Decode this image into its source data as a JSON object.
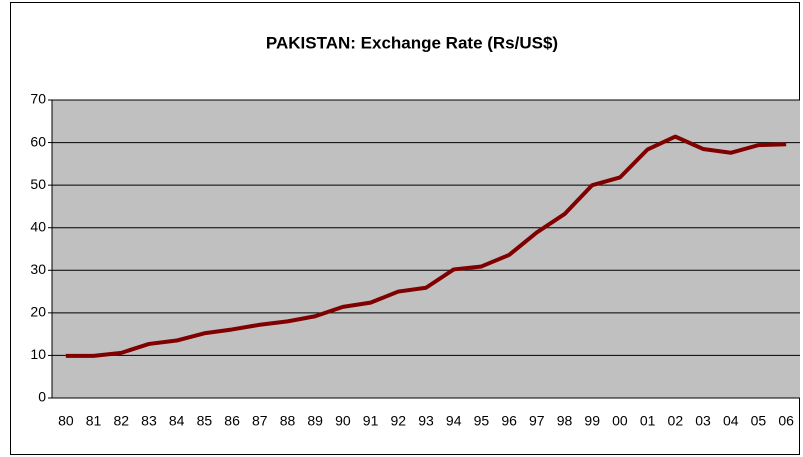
{
  "chart_data": {
    "type": "line",
    "title": "PAKISTAN: Exchange Rate (Rs/US$)",
    "categories": [
      "80",
      "81",
      "82",
      "83",
      "84",
      "85",
      "86",
      "87",
      "88",
      "89",
      "90",
      "91",
      "92",
      "93",
      "94",
      "95",
      "96",
      "97",
      "98",
      "99",
      "00",
      "01",
      "02",
      "03",
      "04",
      "05",
      "06"
    ],
    "series": [
      {
        "name": "Exchange Rate",
        "color": "#800000",
        "values": [
          9.9,
          9.9,
          10.6,
          12.7,
          13.5,
          15.2,
          16.1,
          17.2,
          18.0,
          19.2,
          21.4,
          22.4,
          25.0,
          25.9,
          30.2,
          30.9,
          33.6,
          38.9,
          43.2,
          50.0,
          51.8,
          58.4,
          61.4,
          58.5,
          57.6,
          59.4,
          59.6
        ]
      }
    ],
    "ylim": [
      0,
      70
    ],
    "yticks": [
      0,
      10,
      20,
      30,
      40,
      50,
      60,
      70
    ],
    "grid": true
  }
}
